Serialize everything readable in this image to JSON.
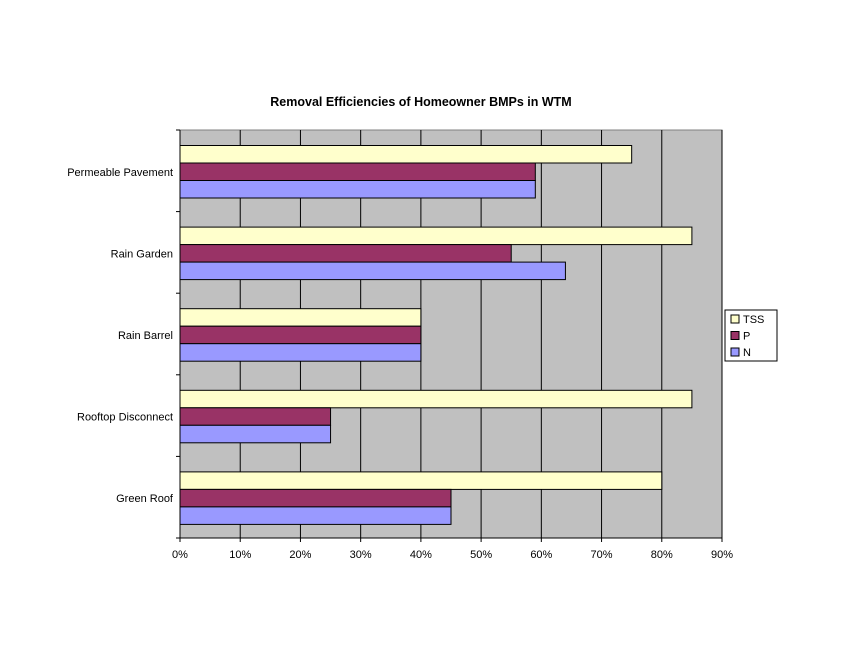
{
  "chart_data": {
    "type": "bar",
    "orientation": "horizontal",
    "title": "Removal Efficiencies of Homeowner BMPs in WTM",
    "xlabel": "",
    "ylabel": "",
    "categories": [
      "Permeable Pavement",
      "Rain Garden",
      "Rain Barrel",
      "Rooftop Disconnect",
      "Green Roof"
    ],
    "series": [
      {
        "name": "TSS",
        "color": "#ffffcc",
        "values": [
          75,
          85,
          40,
          85,
          80
        ]
      },
      {
        "name": "P",
        "color": "#993366",
        "values": [
          59,
          55,
          40,
          25,
          45
        ]
      },
      {
        "name": "N",
        "color": "#9999ff",
        "values": [
          59,
          64,
          40,
          25,
          45
        ]
      }
    ],
    "xlim": [
      0,
      90
    ],
    "xticks": [
      "0%",
      "10%",
      "20%",
      "30%",
      "40%",
      "50%",
      "60%",
      "70%",
      "80%",
      "90%"
    ],
    "grid": true,
    "legend": "right",
    "plot_background": "#c0c0c0"
  }
}
